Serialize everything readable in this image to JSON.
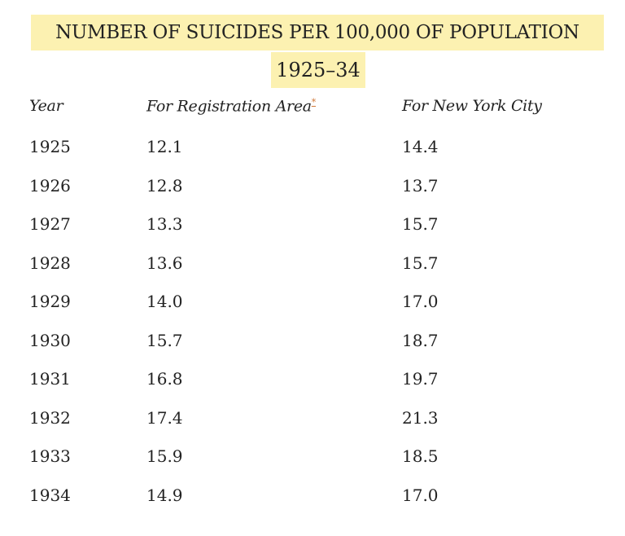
{
  "header": {
    "title": "NUMBER OF SUICIDES PER 100,000 OF POPULATION",
    "subtitle": "1925–34"
  },
  "table": {
    "columns": [
      "Year",
      "For Registration Area",
      "For New York City"
    ],
    "footnote_marker": "*",
    "rows": [
      [
        "1925",
        "12.1",
        "14.4"
      ],
      [
        "1926",
        "12.8",
        "13.7"
      ],
      [
        "1927",
        "13.3",
        "15.7"
      ],
      [
        "1928",
        "13.6",
        "15.7"
      ],
      [
        "1929",
        "14.0",
        "17.0"
      ],
      [
        "1930",
        "15.7",
        "18.7"
      ],
      [
        "1931",
        "16.8",
        "19.7"
      ],
      [
        "1932",
        "17.4",
        "21.3"
      ],
      [
        "1933",
        "15.9",
        "18.5"
      ],
      [
        "1934",
        "14.9",
        "17.0"
      ]
    ]
  }
}
